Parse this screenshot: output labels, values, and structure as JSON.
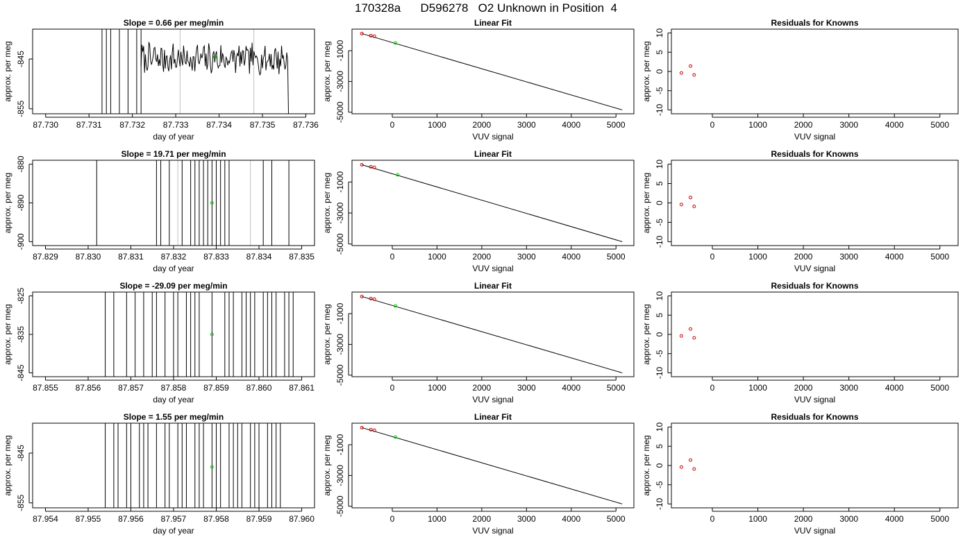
{
  "page_title": "170328a      D596278   O2 Unknown in Position  4",
  "chart_data": [
    {
      "type": "line",
      "row": 0,
      "col": 0,
      "title": "Slope =  0.66  per meg/min",
      "xlabel": "day of year",
      "ylabel": "approx. per meg",
      "xlim": [
        87.7297,
        87.7362
      ],
      "ylim": [
        -856,
        -839
      ],
      "xticks": [
        87.73,
        87.731,
        87.732,
        87.733,
        87.734,
        87.735,
        87.736
      ],
      "xtick_labels": [
        "87.730",
        "87.731",
        "87.732",
        "87.733",
        "87.734",
        "87.735",
        "87.736"
      ],
      "yticks": [
        -855,
        -845
      ],
      "ytick_labels": [
        "-855",
        "-845"
      ],
      "vlines": [
        87.7331,
        87.7348
      ],
      "spikes": [
        87.7313,
        87.7314,
        87.7315,
        87.7317,
        87.7319,
        87.7321,
        87.7322
      ],
      "series": [
        {
          "seed": 7,
          "x_start": 87.7322,
          "x_end": 87.7356,
          "center": -845,
          "amp": 2.6,
          "end_y": -856
        }
      ],
      "marker": {
        "x": 87.7339,
        "y": -844.6
      }
    },
    {
      "type": "scatter",
      "row": 0,
      "col": 1,
      "title": "Linear Fit",
      "xlabel": "VUV signal",
      "ylabel": "approx. per meg",
      "xlim": [
        -900,
        5400
      ],
      "ylim": [
        -5100,
        400
      ],
      "xticks": [
        0,
        1000,
        2000,
        3000,
        4000,
        5000
      ],
      "xtick_labels": [
        "0",
        "1000",
        "2000",
        "3000",
        "4000",
        "5000"
      ],
      "yticks": [
        -5000,
        -3000,
        -1000
      ],
      "ytick_labels": [
        "-5000",
        "-3000",
        "-1000"
      ],
      "fit_line": [
        [
          -680,
          110
        ],
        [
          5140,
          -4850
        ]
      ],
      "knowns": [
        [
          -680,
          110
        ],
        [
          -480,
          -20
        ],
        [
          -400,
          -60
        ]
      ],
      "unknown": [
        [
          70,
          -500
        ]
      ]
    },
    {
      "type": "scatter",
      "row": 0,
      "col": 2,
      "title": "Residuals for Knowns",
      "xlabel": "VUV signal",
      "ylabel": "approx. per meg",
      "xlim": [
        -900,
        5400
      ],
      "ylim": [
        -11,
        11
      ],
      "xticks": [
        0,
        1000,
        2000,
        3000,
        4000,
        5000
      ],
      "xtick_labels": [
        "0",
        "1000",
        "2000",
        "3000",
        "4000",
        "5000"
      ],
      "yticks": [
        -10,
        -5,
        0,
        5,
        10
      ],
      "ytick_labels": [
        "-10",
        "-5",
        "0",
        "5",
        "10"
      ],
      "residuals": [
        [
          -680,
          -0.4
        ],
        [
          -480,
          1.4
        ],
        [
          -400,
          -0.9
        ]
      ]
    },
    {
      "type": "line",
      "row": 1,
      "col": 0,
      "title": "Slope =  19.71  per meg/min",
      "xlabel": "day of year",
      "ylabel": "approx. per meg",
      "xlim": [
        87.8287,
        87.8353
      ],
      "ylim": [
        -901,
        -879
      ],
      "xticks": [
        87.829,
        87.83,
        87.831,
        87.832,
        87.833,
        87.834,
        87.835
      ],
      "xtick_labels": [
        "87.829",
        "87.830",
        "87.831",
        "87.832",
        "87.833",
        "87.834",
        "87.835"
      ],
      "yticks": [
        -900,
        -890,
        -880
      ],
      "ytick_labels": [
        "-900",
        "-890",
        "-880"
      ],
      "vlines": [
        87.8321,
        87.8338
      ],
      "spikes": [
        87.8302,
        87.8316,
        87.8317,
        87.8319,
        87.8322,
        87.8324,
        87.8325,
        87.8326,
        87.8327,
        87.8328,
        87.8329,
        87.833,
        87.8331,
        87.8332,
        87.8333,
        87.8341,
        87.8343,
        87.8347
      ],
      "series": [],
      "marker": {
        "x": 87.8329,
        "y": -890
      }
    },
    {
      "type": "scatter",
      "row": 1,
      "col": 1,
      "title": "Linear Fit",
      "xlabel": "VUV signal",
      "ylabel": "approx. per meg",
      "xlim": [
        -900,
        5400
      ],
      "ylim": [
        -5100,
        400
      ],
      "xticks": [
        0,
        1000,
        2000,
        3000,
        4000,
        5000
      ],
      "xtick_labels": [
        "0",
        "1000",
        "2000",
        "3000",
        "4000",
        "5000"
      ],
      "yticks": [
        -5000,
        -3000,
        -1000
      ],
      "ytick_labels": [
        "-5000",
        "-3000",
        "-1000"
      ],
      "fit_line": [
        [
          -680,
          110
        ],
        [
          5140,
          -4850
        ]
      ],
      "knowns": [
        [
          -680,
          110
        ],
        [
          -480,
          -20
        ],
        [
          -400,
          -60
        ]
      ],
      "unknown": [
        [
          120,
          -540
        ]
      ]
    },
    {
      "type": "scatter",
      "row": 1,
      "col": 2,
      "title": "Residuals for Knowns",
      "xlabel": "VUV signal",
      "ylabel": "approx. per meg",
      "xlim": [
        -900,
        5400
      ],
      "ylim": [
        -11,
        11
      ],
      "xticks": [
        0,
        1000,
        2000,
        3000,
        4000,
        5000
      ],
      "xtick_labels": [
        "0",
        "1000",
        "2000",
        "3000",
        "4000",
        "5000"
      ],
      "yticks": [
        -10,
        -5,
        0,
        5,
        10
      ],
      "ytick_labels": [
        "-10",
        "-5",
        "0",
        "5",
        "10"
      ],
      "residuals": [
        [
          -680,
          -0.4
        ],
        [
          -480,
          1.4
        ],
        [
          -400,
          -0.9
        ]
      ]
    },
    {
      "type": "line",
      "row": 2,
      "col": 0,
      "title": "Slope =  -29.09  per meg/min",
      "xlabel": "day of year",
      "ylabel": "approx. per meg",
      "xlim": [
        87.8547,
        87.8613
      ],
      "ylim": [
        -846,
        -824
      ],
      "xticks": [
        87.855,
        87.856,
        87.857,
        87.858,
        87.859,
        87.86,
        87.861
      ],
      "xtick_labels": [
        "87.855",
        "87.856",
        "87.857",
        "87.858",
        "87.859",
        "87.860",
        "87.861"
      ],
      "yticks": [
        -845,
        -835,
        -825
      ],
      "ytick_labels": [
        "-845",
        "-835",
        "-825"
      ],
      "vlines": [],
      "spikes": [
        87.8564,
        87.8566,
        87.8569,
        87.8571,
        87.8573,
        87.8575,
        87.8576,
        87.8578,
        87.858,
        87.8581,
        87.8583,
        87.8584,
        87.8585,
        87.8586,
        87.8589,
        87.8592,
        87.8593,
        87.8594,
        87.8596,
        87.8597,
        87.8598,
        87.8599,
        87.8601,
        87.8602,
        87.8603,
        87.8604,
        87.8606,
        87.8607,
        87.8608
      ],
      "series": [],
      "marker": {
        "x": 87.8589,
        "y": -835
      }
    },
    {
      "type": "scatter",
      "row": 2,
      "col": 1,
      "title": "Linear Fit",
      "xlabel": "VUV signal",
      "ylabel": "approx. per meg",
      "xlim": [
        -900,
        5400
      ],
      "ylim": [
        -5100,
        400
      ],
      "xticks": [
        0,
        1000,
        2000,
        3000,
        4000,
        5000
      ],
      "xtick_labels": [
        "0",
        "1000",
        "2000",
        "3000",
        "4000",
        "5000"
      ],
      "yticks": [
        -5000,
        -3000,
        -1000
      ],
      "ytick_labels": [
        "-5000",
        "-3000",
        "-1000"
      ],
      "fit_line": [
        [
          -680,
          110
        ],
        [
          5140,
          -4850
        ]
      ],
      "knowns": [
        [
          -680,
          110
        ],
        [
          -480,
          -20
        ],
        [
          -400,
          -60
        ]
      ],
      "unknown": [
        [
          70,
          -500
        ]
      ]
    },
    {
      "type": "scatter",
      "row": 2,
      "col": 2,
      "title": "Residuals for Knowns",
      "xlabel": "VUV signal",
      "ylabel": "approx. per meg",
      "xlim": [
        -900,
        5400
      ],
      "ylim": [
        -11,
        11
      ],
      "xticks": [
        0,
        1000,
        2000,
        3000,
        4000,
        5000
      ],
      "xtick_labels": [
        "0",
        "1000",
        "2000",
        "3000",
        "4000",
        "5000"
      ],
      "yticks": [
        -10,
        -5,
        0,
        5,
        10
      ],
      "ytick_labels": [
        "-10",
        "-5",
        "0",
        "5",
        "10"
      ],
      "residuals": [
        [
          -680,
          -0.4
        ],
        [
          -480,
          1.4
        ],
        [
          -400,
          -0.9
        ]
      ]
    },
    {
      "type": "line",
      "row": 3,
      "col": 0,
      "title": "Slope =  1.55  per meg/min",
      "xlabel": "day of year",
      "ylabel": "approx. per meg",
      "xlim": [
        87.9537,
        87.9603
      ],
      "ylim": [
        -856,
        -839
      ],
      "xticks": [
        87.954,
        87.955,
        87.956,
        87.957,
        87.958,
        87.959,
        87.96
      ],
      "xtick_labels": [
        "87.954",
        "87.955",
        "87.956",
        "87.957",
        "87.958",
        "87.959",
        "87.960"
      ],
      "yticks": [
        -855,
        -845
      ],
      "ytick_labels": [
        "-855",
        "-845"
      ],
      "vlines": [],
      "spikes": [
        87.9554,
        87.9556,
        87.9557,
        87.9559,
        87.956,
        87.9562,
        87.9563,
        87.9564,
        87.9566,
        87.9568,
        87.9569,
        87.9571,
        87.9572,
        87.9573,
        87.9575,
        87.9576,
        87.9577,
        87.9579,
        87.958,
        87.9581,
        87.9583,
        87.9584,
        87.9585,
        87.9586,
        87.9588,
        87.9589,
        87.959,
        87.9592,
        87.9593,
        87.9594,
        87.9595
      ],
      "series": [],
      "marker": {
        "x": 87.9579,
        "y": -847.8
      }
    },
    {
      "type": "scatter",
      "row": 3,
      "col": 1,
      "title": "Linear Fit",
      "xlabel": "VUV signal",
      "ylabel": "approx. per meg",
      "xlim": [
        -900,
        5400
      ],
      "ylim": [
        -5100,
        400
      ],
      "xticks": [
        0,
        1000,
        2000,
        3000,
        4000,
        5000
      ],
      "xtick_labels": [
        "0",
        "1000",
        "2000",
        "3000",
        "4000",
        "5000"
      ],
      "yticks": [
        -5000,
        -3000,
        -1000
      ],
      "ytick_labels": [
        "-5000",
        "-3000",
        "-1000"
      ],
      "fit_line": [
        [
          -680,
          110
        ],
        [
          5140,
          -4850
        ]
      ],
      "knowns": [
        [
          -680,
          110
        ],
        [
          -480,
          -20
        ],
        [
          -400,
          -60
        ]
      ],
      "unknown": [
        [
          70,
          -500
        ]
      ]
    },
    {
      "type": "scatter",
      "row": 3,
      "col": 2,
      "title": "Residuals for Knowns",
      "xlabel": "VUV signal",
      "ylabel": "approx. per meg",
      "xlim": [
        -900,
        5400
      ],
      "ylim": [
        -11,
        11
      ],
      "xticks": [
        0,
        1000,
        2000,
        3000,
        4000,
        5000
      ],
      "xtick_labels": [
        "0",
        "1000",
        "2000",
        "3000",
        "4000",
        "5000"
      ],
      "yticks": [
        -10,
        -5,
        0,
        5,
        10
      ],
      "ytick_labels": [
        "-10",
        "-5",
        "0",
        "5",
        "10"
      ],
      "residuals": [
        [
          -680,
          -0.4
        ],
        [
          -480,
          1.4
        ],
        [
          -400,
          -0.9
        ]
      ]
    }
  ]
}
